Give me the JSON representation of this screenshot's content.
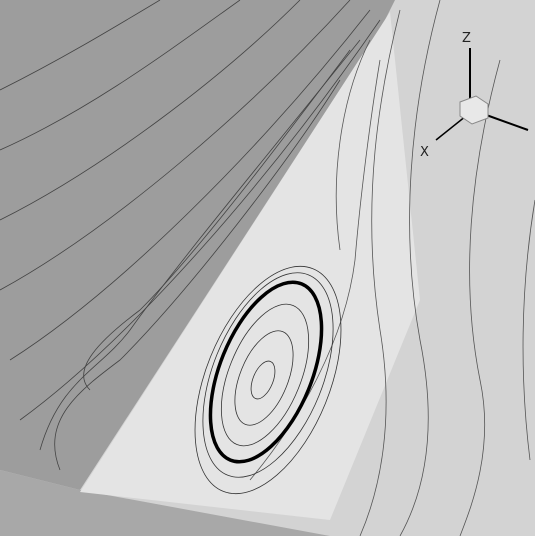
{
  "axis_triad": {
    "z_label": "Z",
    "x_label": "X"
  }
}
